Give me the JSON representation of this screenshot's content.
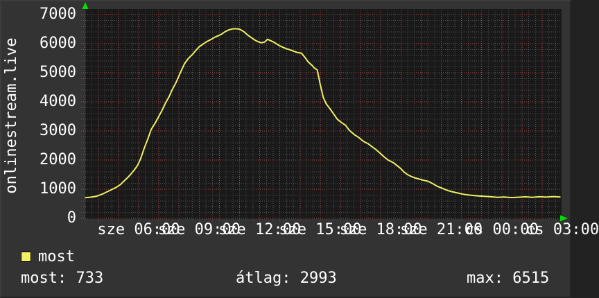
{
  "title": "onlinestream.live",
  "legend": {
    "label": "most",
    "swatch_color": "#f0f064"
  },
  "stats_row": {
    "current": "most: 733",
    "average": "átlag: 2993",
    "maximum": "max: 6515"
  },
  "colors": {
    "page_bg": "#333333",
    "plot_bg": "#191919",
    "text": "#ffffff",
    "line": "#f0f064",
    "grid_major": "#b04848",
    "grid_minor": "#787878",
    "arrow": "#00dd00"
  },
  "chart_data": {
    "type": "line",
    "title": "onlinestream.live",
    "xlabel": "",
    "ylabel": "",
    "ylim": [
      0,
      7000
    ],
    "grid": "on",
    "legend_position": "bottom-left",
    "y_ticks": [
      0,
      1000,
      2000,
      3000,
      4000,
      5000,
      6000,
      7000
    ],
    "y_minor_step": 200,
    "x_minor_step_minutes": 20,
    "x_major_step_hours": 1,
    "x_start_hour": 3.34,
    "x_end_hour": 26.91,
    "x_hours_note": "hours since Wednesday 00:00; >24 = Thursday (cs)",
    "x_tick_labels": [
      {
        "hour": 6,
        "label": "sze 06:00"
      },
      {
        "hour": 9,
        "label": "sze 09:00"
      },
      {
        "hour": 12,
        "label": "sze 12:00"
      },
      {
        "hour": 15,
        "label": "sze 15:00"
      },
      {
        "hour": 18,
        "label": "sze 18:00"
      },
      {
        "hour": 21,
        "label": "sze 21:00"
      },
      {
        "hour": 24,
        "label": "cs 00:00"
      },
      {
        "hour": 27,
        "label": "cs 03:00"
      }
    ],
    "stats": {
      "most": 733,
      "atlag": 2993,
      "max": 6515
    },
    "series": [
      {
        "name": "most",
        "color": "#f0f064",
        "points": [
          [
            3.34,
            710
          ],
          [
            3.6,
            725
          ],
          [
            3.9,
            755
          ],
          [
            4.2,
            830
          ],
          [
            4.55,
            950
          ],
          [
            4.9,
            1070
          ],
          [
            5.1,
            1160
          ],
          [
            5.24,
            1260
          ],
          [
            5.4,
            1360
          ],
          [
            5.59,
            1500
          ],
          [
            5.76,
            1640
          ],
          [
            5.93,
            1800
          ],
          [
            6.1,
            2050
          ],
          [
            6.27,
            2400
          ],
          [
            6.45,
            2720
          ],
          [
            6.62,
            3050
          ],
          [
            6.8,
            3250
          ],
          [
            6.96,
            3450
          ],
          [
            7.15,
            3700
          ],
          [
            7.31,
            3930
          ],
          [
            7.5,
            4170
          ],
          [
            7.65,
            4400
          ],
          [
            7.85,
            4660
          ],
          [
            7.99,
            4880
          ],
          [
            8.13,
            5100
          ],
          [
            8.27,
            5310
          ],
          [
            8.45,
            5480
          ],
          [
            8.68,
            5640
          ],
          [
            8.85,
            5780
          ],
          [
            9.0,
            5890
          ],
          [
            9.2,
            5990
          ],
          [
            9.37,
            6070
          ],
          [
            9.6,
            6150
          ],
          [
            9.8,
            6230
          ],
          [
            10.0,
            6290
          ],
          [
            10.12,
            6330
          ],
          [
            10.3,
            6420
          ],
          [
            10.5,
            6480
          ],
          [
            10.64,
            6505
          ],
          [
            10.8,
            6515
          ],
          [
            11.0,
            6500
          ],
          [
            11.2,
            6420
          ],
          [
            11.4,
            6300
          ],
          [
            11.6,
            6200
          ],
          [
            11.77,
            6120
          ],
          [
            11.95,
            6060
          ],
          [
            12.1,
            6030
          ],
          [
            12.25,
            6060
          ],
          [
            12.39,
            6150
          ],
          [
            12.55,
            6100
          ],
          [
            12.7,
            6050
          ],
          [
            12.91,
            5960
          ],
          [
            13.1,
            5890
          ],
          [
            13.3,
            5830
          ],
          [
            13.49,
            5790
          ],
          [
            13.65,
            5750
          ],
          [
            13.85,
            5700
          ],
          [
            14.08,
            5670
          ],
          [
            14.25,
            5520
          ],
          [
            14.42,
            5360
          ],
          [
            14.6,
            5250
          ],
          [
            14.7,
            5170
          ],
          [
            14.85,
            5100
          ],
          [
            15.0,
            4600
          ],
          [
            15.15,
            4150
          ],
          [
            15.3,
            3930
          ],
          [
            15.5,
            3750
          ],
          [
            15.65,
            3600
          ],
          [
            15.85,
            3400
          ],
          [
            16.05,
            3290
          ],
          [
            16.25,
            3200
          ],
          [
            16.45,
            3020
          ],
          [
            16.7,
            2870
          ],
          [
            16.9,
            2780
          ],
          [
            17.15,
            2640
          ],
          [
            17.4,
            2550
          ],
          [
            17.55,
            2470
          ],
          [
            17.75,
            2370
          ],
          [
            17.95,
            2250
          ],
          [
            18.15,
            2120
          ],
          [
            18.35,
            2010
          ],
          [
            18.65,
            1900
          ],
          [
            18.99,
            1710
          ],
          [
            19.15,
            1590
          ],
          [
            19.33,
            1500
          ],
          [
            19.5,
            1440
          ],
          [
            19.68,
            1390
          ],
          [
            19.9,
            1350
          ],
          [
            20.1,
            1310
          ],
          [
            20.36,
            1270
          ],
          [
            20.6,
            1180
          ],
          [
            20.8,
            1100
          ],
          [
            21.05,
            1030
          ],
          [
            21.3,
            960
          ],
          [
            21.5,
            920
          ],
          [
            21.74,
            880
          ],
          [
            22.0,
            840
          ],
          [
            22.2,
            815
          ],
          [
            22.43,
            795
          ],
          [
            22.7,
            775
          ],
          [
            22.9,
            765
          ],
          [
            23.12,
            755
          ],
          [
            23.4,
            745
          ],
          [
            23.8,
            720
          ],
          [
            24.1,
            730
          ],
          [
            24.49,
            712
          ],
          [
            24.8,
            725
          ],
          [
            25.18,
            738
          ],
          [
            25.5,
            722
          ],
          [
            25.86,
            740
          ],
          [
            26.2,
            728
          ],
          [
            26.55,
            742
          ],
          [
            26.91,
            733
          ]
        ]
      }
    ]
  }
}
